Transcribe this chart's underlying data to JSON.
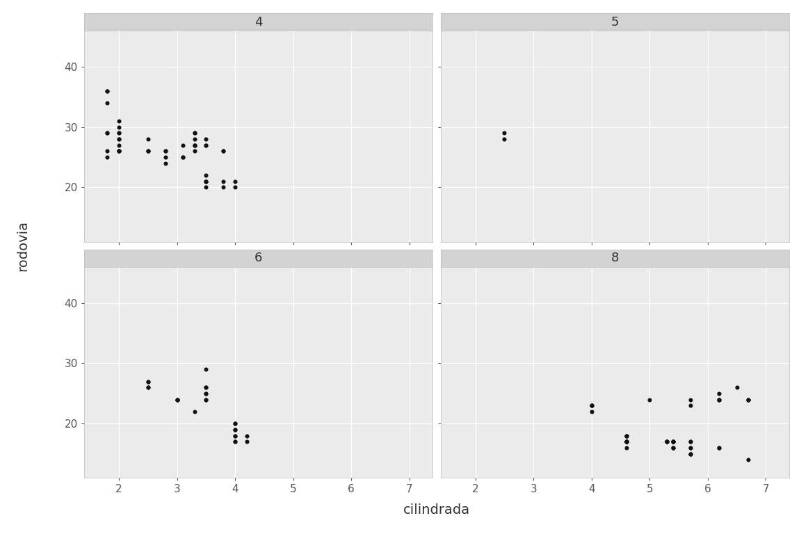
{
  "xlabel": "cilindrada",
  "ylabel": "rodovia",
  "panel_bg": "#EBEBEB",
  "figure_bg": "#FFFFFF",
  "strip_bg": "#D3D3D3",
  "grid_color": "#FFFFFF",
  "point_color": "#111111",
  "point_size": 19,
  "xlim": [
    1.4,
    7.4
  ],
  "ylim": [
    11,
    46
  ],
  "xticks": [
    2,
    3,
    4,
    5,
    6,
    7
  ],
  "yticks": [
    20,
    30,
    40
  ],
  "xlabel_fontsize": 14,
  "ylabel_fontsize": 14,
  "tick_labelsize": 11,
  "strip_fontsize": 13,
  "facets": [
    "4",
    "5",
    "6",
    "8"
  ],
  "data": {
    "4": {
      "x": [
        1.8,
        1.8,
        2.0,
        2.0,
        2.8,
        2.8,
        3.1,
        1.8,
        1.8,
        2.0,
        2.0,
        2.8,
        2.8,
        3.1,
        3.1,
        1.8,
        1.8,
        1.8,
        2.0,
        2.0,
        2.0,
        2.0,
        2.0,
        2.0,
        2.0,
        2.5,
        2.5,
        2.5,
        2.5,
        3.5,
        3.5,
        3.5,
        3.5,
        3.8,
        3.8,
        3.3,
        3.3,
        3.3,
        3.3,
        3.3,
        3.3,
        3.3,
        3.5,
        3.5,
        3.5,
        3.5,
        3.8,
        3.8,
        4.0,
        4.0
      ],
      "y": [
        29,
        29,
        31,
        30,
        26,
        26,
        27,
        26,
        25,
        28,
        27,
        24,
        25,
        25,
        25,
        34,
        36,
        36,
        29,
        26,
        26,
        28,
        26,
        26,
        29,
        28,
        26,
        26,
        26,
        20,
        22,
        21,
        21,
        20,
        21,
        29,
        26,
        27,
        29,
        28,
        27,
        27,
        21,
        28,
        27,
        27,
        26,
        26,
        20,
        21
      ]
    },
    "5": {
      "x": [
        2.5,
        2.5
      ],
      "y": [
        28,
        29
      ]
    },
    "6": {
      "x": [
        2.5,
        2.5,
        2.5,
        2.5,
        3.0,
        3.0,
        3.0,
        3.0,
        3.3,
        3.5,
        3.5,
        3.5,
        3.5,
        3.5,
        3.5,
        3.5,
        4.0,
        4.0,
        4.0,
        4.0,
        4.0,
        4.0,
        4.0,
        4.0,
        4.2,
        4.2
      ],
      "y": [
        26,
        26,
        27,
        27,
        24,
        24,
        24,
        24,
        22,
        29,
        26,
        26,
        24,
        25,
        25,
        24,
        18,
        18,
        17,
        17,
        20,
        20,
        19,
        19,
        18,
        17
      ]
    },
    "8": {
      "x": [
        4.6,
        4.6,
        4.6,
        4.6,
        5.4,
        5.4,
        5.4,
        4.6,
        4.6,
        4.6,
        4.6,
        5.4,
        5.4,
        5.4,
        4.0,
        4.0,
        4.0,
        4.0,
        4.6,
        4.6,
        4.6,
        4.6,
        5.4,
        5.4,
        5.7,
        5.7,
        5.7,
        5.7,
        5.3,
        5.3,
        5.3,
        5.3,
        5.7,
        5.7,
        5.7,
        6.2,
        6.2,
        6.2,
        6.2,
        6.5,
        6.2,
        5.0,
        5.7,
        5.7,
        6.2,
        6.7,
        6.7,
        6.7,
        6.7
      ],
      "y": [
        17,
        17,
        16,
        17,
        16,
        16,
        16,
        17,
        17,
        17,
        17,
        17,
        17,
        17,
        23,
        23,
        23,
        22,
        17,
        18,
        18,
        18,
        17,
        17,
        16,
        16,
        17,
        17,
        17,
        17,
        17,
        17,
        15,
        15,
        15,
        16,
        16,
        24,
        24,
        26,
        25,
        24,
        24,
        23,
        24,
        14,
        24,
        24,
        24
      ]
    }
  }
}
